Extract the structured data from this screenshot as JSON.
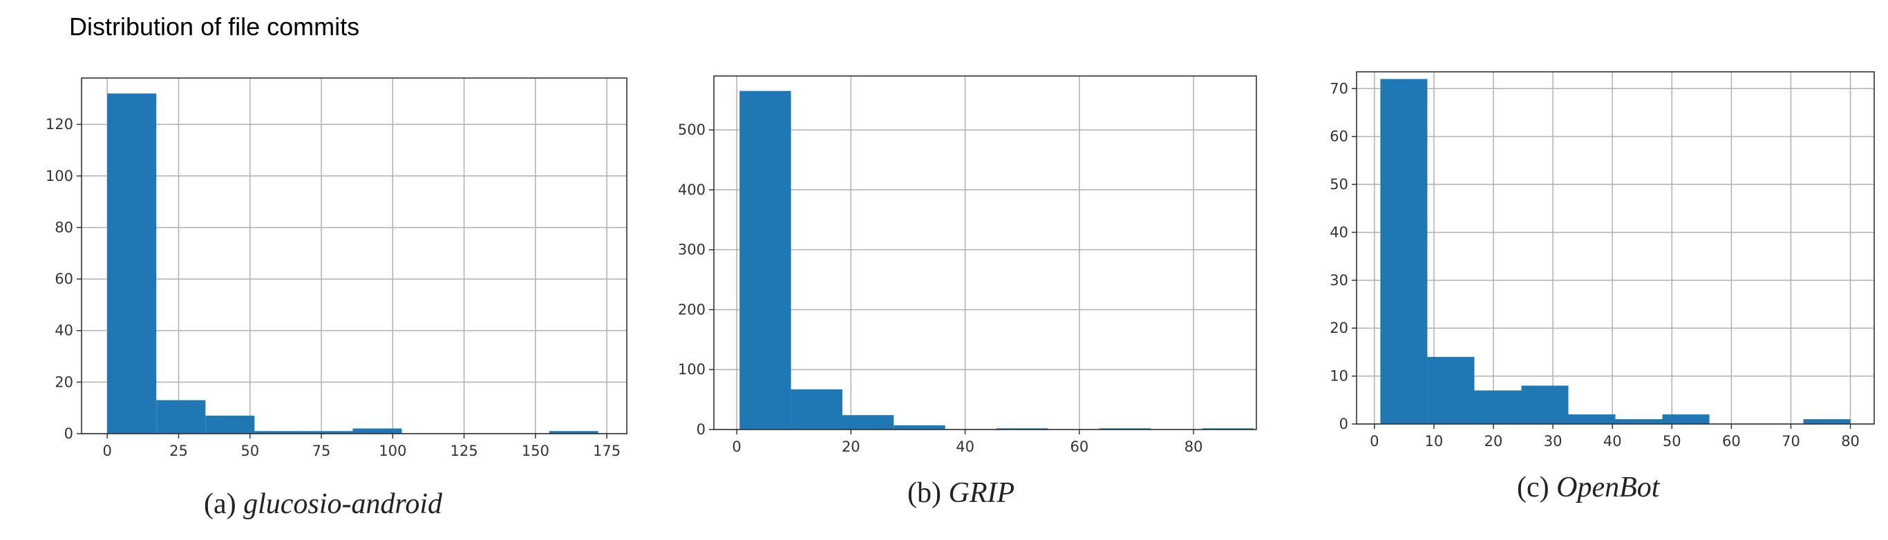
{
  "page": {
    "title": "Distribution of file commits"
  },
  "chart_data": [
    {
      "type": "bar",
      "caption_label": "(a)",
      "caption_name": "glucosio-android",
      "bar_color": "#1f77b4",
      "grid": true,
      "xlim": [
        -9,
        182
      ],
      "ylim": [
        0,
        138
      ],
      "xticks": [
        0,
        25,
        50,
        75,
        100,
        125,
        150,
        175
      ],
      "yticks": [
        0,
        20,
        40,
        60,
        80,
        100,
        120
      ],
      "bins": [
        {
          "x0": 0,
          "x1": 17.2,
          "value": 132
        },
        {
          "x0": 17.2,
          "x1": 34.4,
          "value": 13
        },
        {
          "x0": 34.4,
          "x1": 51.6,
          "value": 7
        },
        {
          "x0": 51.6,
          "x1": 68.8,
          "value": 1
        },
        {
          "x0": 68.8,
          "x1": 86,
          "value": 1
        },
        {
          "x0": 86,
          "x1": 103.2,
          "value": 2
        },
        {
          "x0": 103.2,
          "x1": 120.4,
          "value": 0
        },
        {
          "x0": 120.4,
          "x1": 137.6,
          "value": 0
        },
        {
          "x0": 137.6,
          "x1": 154.8,
          "value": 0
        },
        {
          "x0": 154.8,
          "x1": 172,
          "value": 1
        }
      ]
    },
    {
      "type": "bar",
      "caption_label": "(b)",
      "caption_name": "GRIP",
      "bar_color": "#1f77b4",
      "grid": true,
      "xlim": [
        -4,
        91
      ],
      "ylim": [
        0,
        590
      ],
      "xticks": [
        0,
        20,
        40,
        60,
        80
      ],
      "yticks": [
        0,
        100,
        200,
        300,
        400,
        500
      ],
      "ytick_labels": [
        "0",
        "100",
        "200",
        "300",
        "400",
        "500"
      ],
      "bins": [
        {
          "x0": 0.5,
          "x1": 9.5,
          "value": 565
        },
        {
          "x0": 9.5,
          "x1": 18.5,
          "value": 67
        },
        {
          "x0": 18.5,
          "x1": 27.5,
          "value": 24
        },
        {
          "x0": 27.5,
          "x1": 36.5,
          "value": 7
        },
        {
          "x0": 36.5,
          "x1": 45.5,
          "value": 0
        },
        {
          "x0": 45.5,
          "x1": 54.5,
          "value": 2
        },
        {
          "x0": 54.5,
          "x1": 63.5,
          "value": 0
        },
        {
          "x0": 63.5,
          "x1": 72.5,
          "value": 2
        },
        {
          "x0": 72.5,
          "x1": 81.5,
          "value": 0
        },
        {
          "x0": 81.5,
          "x1": 90.5,
          "value": 2
        }
      ]
    },
    {
      "type": "bar",
      "caption_label": "(c)",
      "caption_name": "OpenBot",
      "bar_color": "#1f77b4",
      "grid": true,
      "xlim": [
        -3,
        84
      ],
      "ylim": [
        0,
        73.5
      ],
      "xticks": [
        0,
        10,
        20,
        30,
        40,
        50,
        60,
        70,
        80
      ],
      "yticks": [
        0,
        10,
        20,
        30,
        40,
        50,
        60,
        70
      ],
      "bins": [
        {
          "x0": 1,
          "x1": 8.9,
          "value": 72
        },
        {
          "x0": 8.9,
          "x1": 16.8,
          "value": 14
        },
        {
          "x0": 16.8,
          "x1": 24.7,
          "value": 7
        },
        {
          "x0": 24.7,
          "x1": 32.6,
          "value": 8
        },
        {
          "x0": 32.6,
          "x1": 40.5,
          "value": 2
        },
        {
          "x0": 40.5,
          "x1": 48.4,
          "value": 1
        },
        {
          "x0": 48.4,
          "x1": 56.3,
          "value": 2
        },
        {
          "x0": 56.3,
          "x1": 64.2,
          "value": 0
        },
        {
          "x0": 64.2,
          "x1": 72.1,
          "value": 0
        },
        {
          "x0": 72.1,
          "x1": 80,
          "value": 1
        }
      ]
    }
  ]
}
